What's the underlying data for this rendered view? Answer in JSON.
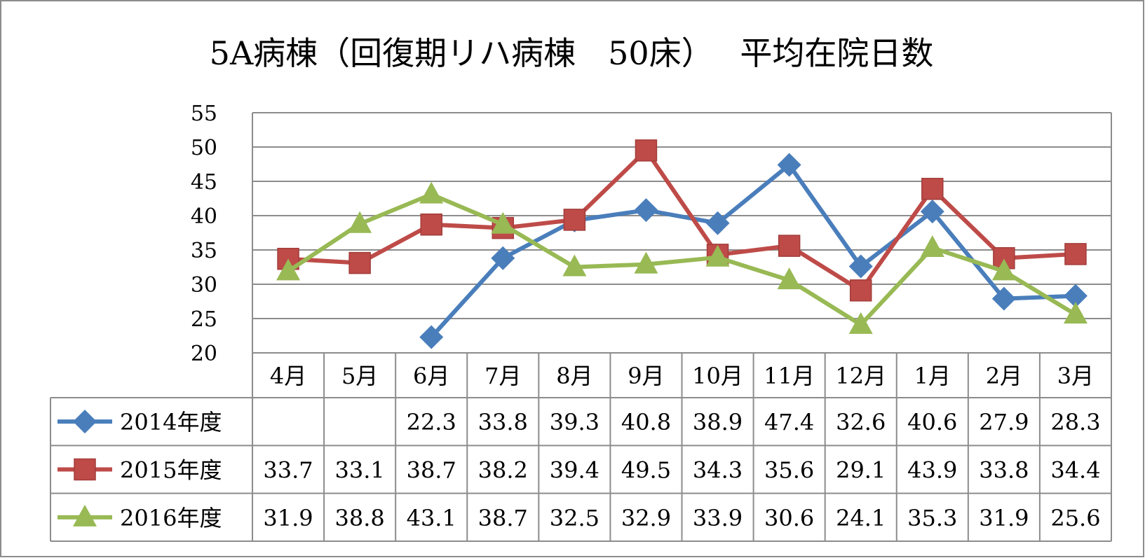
{
  "chart_data": {
    "type": "line",
    "title": "5A病棟（回復期リハ病棟　50床）　 平均在院日数",
    "categories": [
      "4月",
      "5月",
      "6月",
      "7月",
      "8月",
      "9月",
      "10月",
      "11月",
      "12月",
      "1月",
      "2月",
      "3月"
    ],
    "yticks": [
      "20",
      "25",
      "30",
      "35",
      "40",
      "45",
      "50",
      "55"
    ],
    "ylim": [
      20,
      55
    ],
    "grid": true,
    "legend": "data-table-left",
    "series": [
      {
        "name": "2014年度",
        "color": "#4a7ebb",
        "marker": "diamond",
        "values": [
          null,
          null,
          22.3,
          33.8,
          39.3,
          40.8,
          38.9,
          47.4,
          32.6,
          40.6,
          27.9,
          28.3
        ],
        "labels": [
          "",
          "",
          "22.3",
          "33.8",
          "39.3",
          "40.8",
          "38.9",
          "47.4",
          "32.6",
          "40.6",
          "27.9",
          "28.3"
        ]
      },
      {
        "name": "2015年度",
        "color": "#be4b48",
        "marker": "square",
        "values": [
          33.7,
          33.1,
          38.7,
          38.2,
          39.4,
          49.5,
          34.3,
          35.6,
          29.1,
          43.9,
          33.8,
          34.4
        ],
        "labels": [
          "33.7",
          "33.1",
          "38.7",
          "38.2",
          "39.4",
          "49.5",
          "34.3",
          "35.6",
          "29.1",
          "43.9",
          "33.8",
          "34.4"
        ]
      },
      {
        "name": "2016年度",
        "color": "#98b954",
        "marker": "triangle",
        "values": [
          31.9,
          38.8,
          43.1,
          38.7,
          32.5,
          32.9,
          33.9,
          30.6,
          24.1,
          35.3,
          31.9,
          25.6
        ],
        "labels": [
          "31.9",
          "38.8",
          "43.1",
          "38.7",
          "32.5",
          "32.9",
          "33.9",
          "30.6",
          "24.1",
          "35.3",
          "31.9",
          "25.6"
        ]
      }
    ]
  }
}
